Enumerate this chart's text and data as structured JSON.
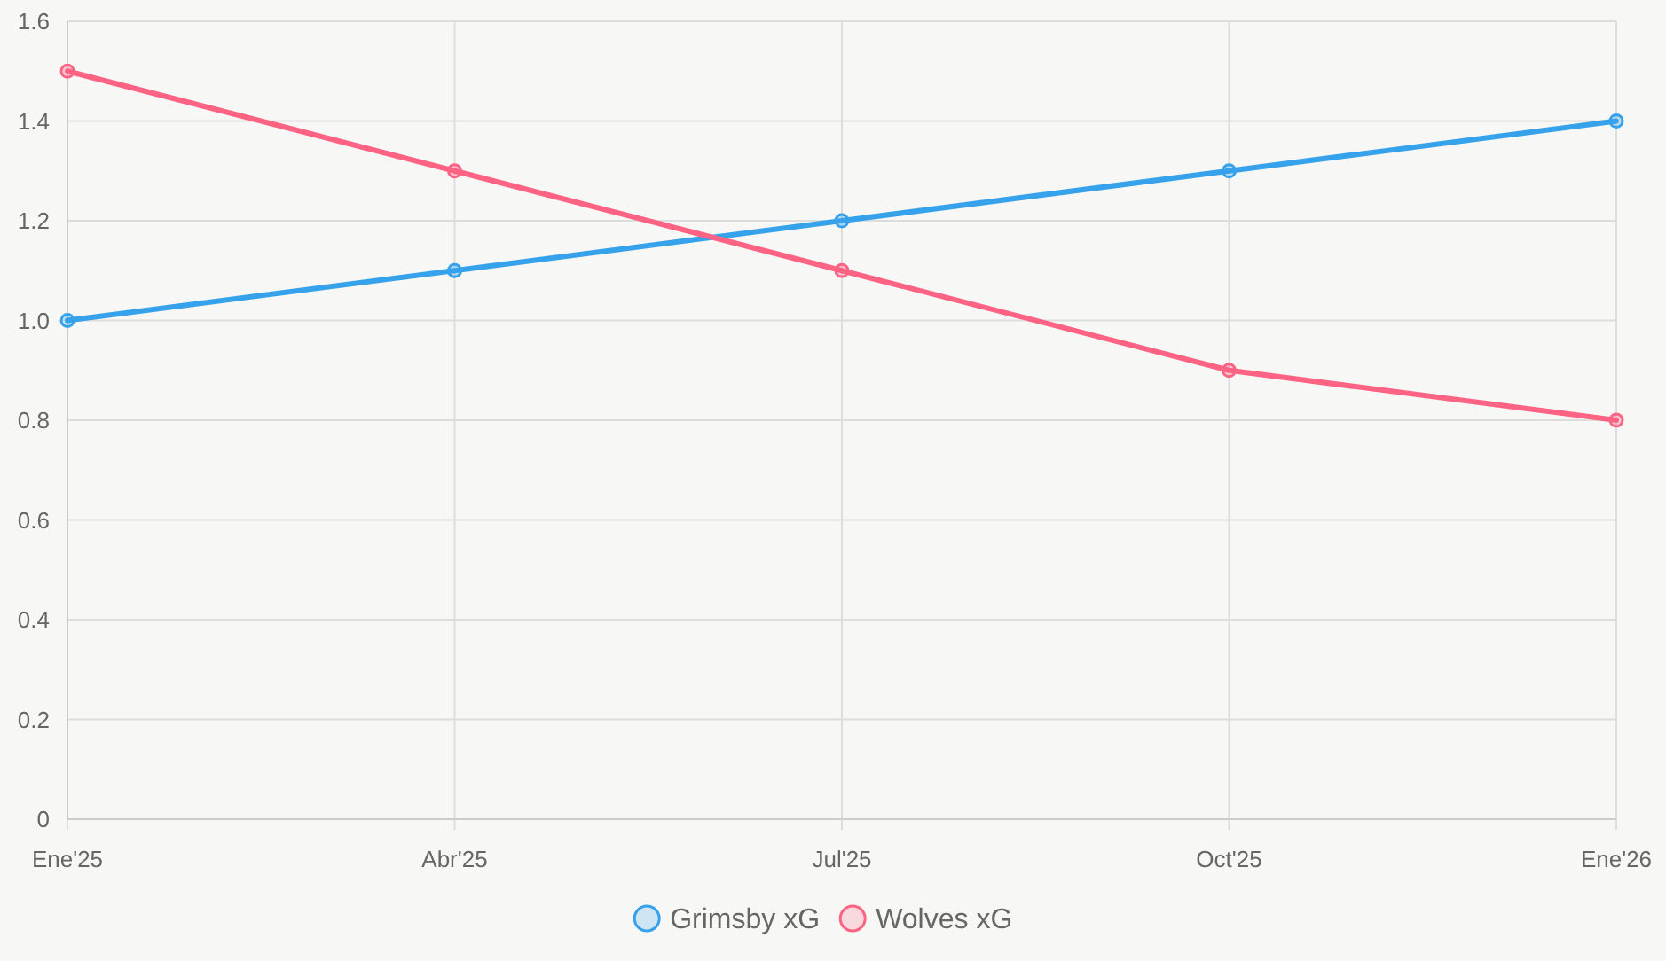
{
  "chart_data": {
    "type": "line",
    "categories": [
      "Ene'25",
      "Abr'25",
      "Jul'25",
      "Oct'25",
      "Ene'26"
    ],
    "series": [
      {
        "name": "Grimsby xG",
        "color": "#36a2eb",
        "values": [
          1.0,
          1.1,
          1.2,
          1.3,
          1.4
        ]
      },
      {
        "name": "Wolves xG",
        "color": "#ff6384",
        "values": [
          1.5,
          1.3,
          1.1,
          0.9,
          0.8
        ]
      }
    ],
    "ylim": [
      0,
      1.6
    ],
    "yticks": [
      {
        "value": 0,
        "label": "0"
      },
      {
        "value": 0.2,
        "label": "0.2"
      },
      {
        "value": 0.4,
        "label": "0.4"
      },
      {
        "value": 0.6,
        "label": "0.6"
      },
      {
        "value": 0.8,
        "label": "0.8"
      },
      {
        "value": 1.0,
        "label": "1.0"
      },
      {
        "value": 1.2,
        "label": "1.2"
      },
      {
        "value": 1.4,
        "label": "1.4"
      },
      {
        "value": 1.6,
        "label": "1.6"
      }
    ],
    "grid": true,
    "legend": "bottom",
    "marker": "circle",
    "line_style": "solid"
  }
}
